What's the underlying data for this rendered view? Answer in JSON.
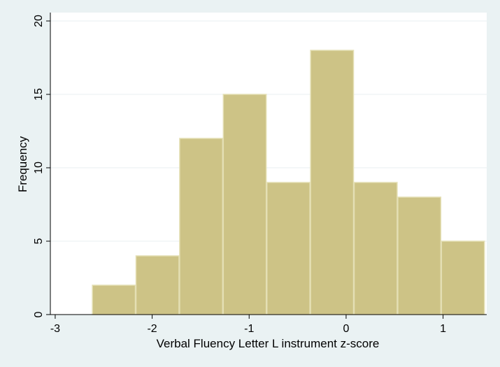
{
  "chart_data": {
    "type": "bar",
    "subtype": "histogram",
    "xlabel": "Verbal Fluency Letter L instrument z-score",
    "ylabel": "Frequency",
    "xlim": [
      -3.05,
      1.45
    ],
    "ylim": [
      0,
      20
    ],
    "x_ticks": [
      -3,
      -2,
      -1,
      0,
      1
    ],
    "y_ticks": [
      0,
      5,
      10,
      15,
      20
    ],
    "grid": true,
    "bins": [
      {
        "start": -2.62,
        "end": -2.17,
        "value": 2
      },
      {
        "start": -2.17,
        "end": -1.72,
        "value": 4
      },
      {
        "start": -1.72,
        "end": -1.27,
        "value": 12
      },
      {
        "start": -1.27,
        "end": -0.82,
        "value": 15
      },
      {
        "start": -0.82,
        "end": -0.37,
        "value": 9
      },
      {
        "start": -0.37,
        "end": 0.08,
        "value": 18
      },
      {
        "start": 0.08,
        "end": 0.53,
        "value": 9
      },
      {
        "start": 0.53,
        "end": 0.98,
        "value": 8
      },
      {
        "start": 0.98,
        "end": 1.43,
        "value": 5
      }
    ],
    "colors": {
      "bar_fill": "#cdc386",
      "bar_edge": "#e4dfb4",
      "plot_background": "#ffffff",
      "outer_background": "#eaf2f3",
      "grid": "#e9eff0",
      "axis": "#000000"
    }
  }
}
